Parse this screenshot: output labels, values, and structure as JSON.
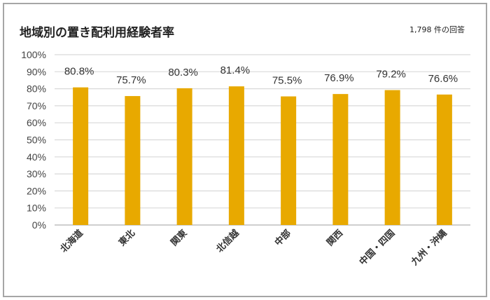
{
  "chart_data": {
    "type": "bar",
    "title": "地域別の置き配利用経験者率",
    "annotation": "1,798 件の回答",
    "categories": [
      "北海道",
      "東北",
      "関東",
      "北信越",
      "中部",
      "関西",
      "中国・四国",
      "九州・沖縄"
    ],
    "values": [
      80.8,
      75.7,
      80.3,
      81.4,
      75.5,
      76.9,
      79.2,
      76.6
    ],
    "data_labels": [
      "80.8%",
      "75.7%",
      "80.3%",
      "81.4%",
      "75.5%",
      "76.9%",
      "79.2%",
      "76.6%"
    ],
    "ylim": [
      0,
      100
    ],
    "yticks": [
      "0%",
      "10%",
      "20%",
      "30%",
      "40%",
      "50%",
      "60%",
      "70%",
      "80%",
      "90%",
      "100%"
    ],
    "xlabel": "",
    "ylabel": "",
    "grid": true,
    "legend": "none",
    "colors": {
      "bar": "#E8A900",
      "grid": "#d9d9d9",
      "axis": "#bfbfbf",
      "border": "#a6a6a6"
    }
  }
}
